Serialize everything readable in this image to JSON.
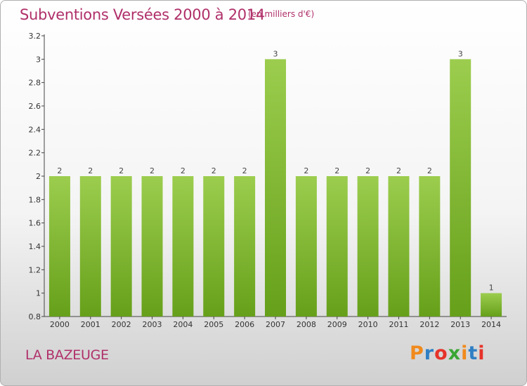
{
  "header": {
    "title": "Subventions Versées 2000 à 2014",
    "subtitle": "(en milliers d'€)"
  },
  "footer": {
    "place": "LA BAZEUGE",
    "logo_text": "Proxiti"
  },
  "colors": {
    "title": "#b0306a",
    "bar_light": "#9ccd4e",
    "bar_dark": "#66a01a",
    "logo": [
      "#f08a1c",
      "#2f7fc4",
      "#e6332a",
      "#3aa635",
      "#f08a1c",
      "#2f7fc4",
      "#e6332a"
    ]
  },
  "chart_data": {
    "type": "bar",
    "title": "Subventions Versées 2000 à 2014",
    "subtitle": "(en milliers d'€)",
    "categories": [
      "2000",
      "2001",
      "2002",
      "2003",
      "2004",
      "2005",
      "2006",
      "2007",
      "2008",
      "2009",
      "2010",
      "2011",
      "2012",
      "2013",
      "2014"
    ],
    "values": [
      2,
      2,
      2,
      2,
      2,
      2,
      2,
      3,
      2,
      2,
      2,
      2,
      2,
      3,
      1
    ],
    "value_labels": [
      "2",
      "2",
      "2",
      "2",
      "2",
      "2",
      "2",
      "3",
      "2",
      "2",
      "2",
      "2",
      "2",
      "3",
      "1"
    ],
    "ylim": [
      0.8,
      3.2
    ],
    "yticks": [
      0.8,
      1,
      1.2,
      1.4,
      1.6,
      1.8,
      2,
      2.2,
      2.4,
      2.6,
      2.8,
      3,
      3.2
    ],
    "ytick_labels": [
      "0.8",
      "1",
      "1.2",
      "1.4",
      "1.6",
      "1.8",
      "2",
      "2.2",
      "2.4",
      "2.6",
      "2.8",
      "3",
      "3.2"
    ],
    "grid": false,
    "legend": "none"
  }
}
